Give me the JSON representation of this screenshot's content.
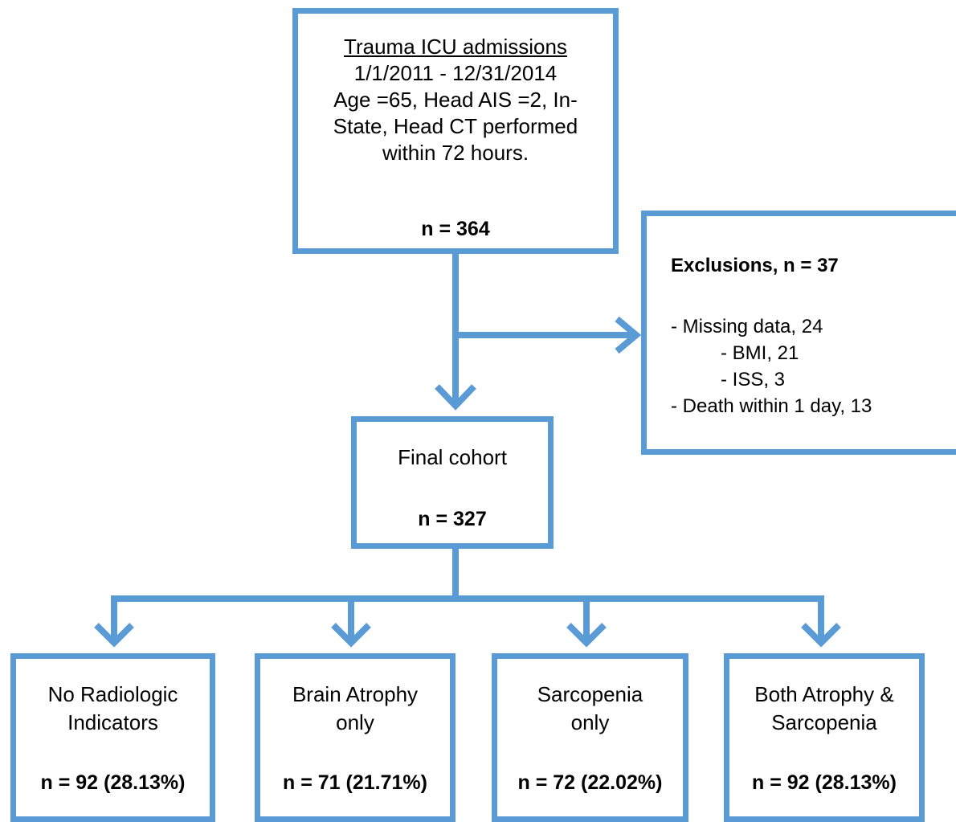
{
  "colors": {
    "stroke": "#5b9bd5",
    "background": "#ffffff",
    "text": "#000000"
  },
  "top_box": {
    "title": "Trauma ICU admissions",
    "lines": [
      "1/1/2011 - 12/31/2014",
      "Age =65, Head AIS =2, In-",
      "State, Head CT performed",
      "within 72 hours."
    ],
    "n": "n = 364"
  },
  "exclusions": {
    "title": "Exclusions, n = 37",
    "items": [
      "- Missing data, 24",
      "- BMI, 21",
      "- ISS, 3",
      "- Death within 1 day, 13"
    ]
  },
  "final_box": {
    "label": "Final cohort",
    "n": "n = 327"
  },
  "groups": [
    {
      "lines": [
        "No Radiologic",
        "Indicators"
      ],
      "n": "n = 92 (28.13%)"
    },
    {
      "lines": [
        "Brain Atrophy",
        "only"
      ],
      "n": "n = 71 (21.71%)"
    },
    {
      "lines": [
        "Sarcopenia",
        "only"
      ],
      "n": "n = 72 (22.02%)"
    },
    {
      "lines": [
        "Both Atrophy &",
        "Sarcopenia"
      ],
      "n": "n = 92 (28.13%)"
    }
  ]
}
